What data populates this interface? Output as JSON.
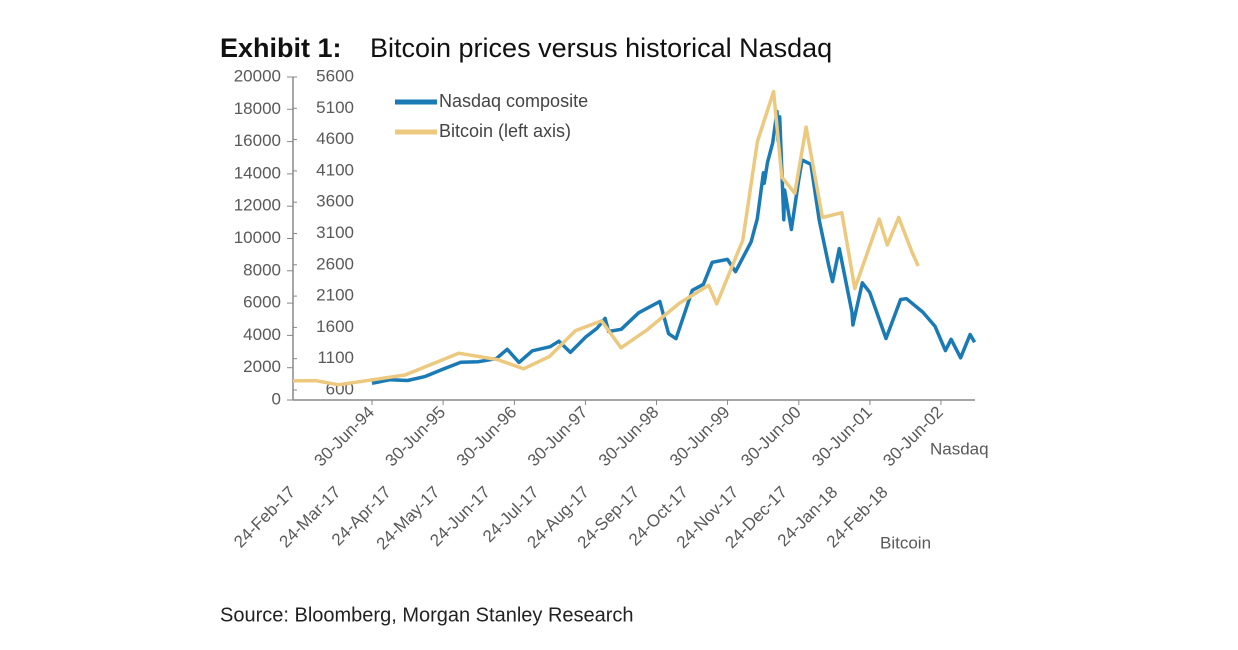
{
  "chart_data": {
    "type": "line",
    "title": "Exhibit 1:",
    "subtitle": "Bitcoin prices versus historical Nasdaq",
    "source": "Source: Bloomberg, Morgan Stanley Research",
    "legend": "upper left",
    "ylim": [
      0,
      20000
    ],
    "yticks": [
      0,
      2000,
      4000,
      6000,
      8000,
      10000,
      12000,
      14000,
      16000,
      18000,
      20000
    ],
    "y2lim": [
      440,
      5600
    ],
    "y2ticks": [
      600,
      1100,
      1600,
      2100,
      2600,
      3100,
      3600,
      4100,
      4600,
      5100,
      5600
    ],
    "xaxes": [
      {
        "label": "Nasdaq",
        "xlim": [
          "1993-05-20",
          "2002-12-22"
        ],
        "xticks": [
          {
            "value": "1994-06-30",
            "label": "30-Jun-94"
          },
          {
            "value": "1995-06-30",
            "label": "30-Jun-95"
          },
          {
            "value": "1996-06-30",
            "label": "30-Jun-96"
          },
          {
            "value": "1997-06-30",
            "label": "30-Jun-97"
          },
          {
            "value": "1998-06-30",
            "label": "30-Jun-98"
          },
          {
            "value": "1999-06-30",
            "label": "30-Jun-99"
          },
          {
            "value": "2000-06-30",
            "label": "30-Jun-00"
          },
          {
            "value": "2001-06-30",
            "label": "30-Jun-01"
          },
          {
            "value": "2002-06-30",
            "label": "30-Jun-02"
          }
        ]
      },
      {
        "label": "Bitcoin",
        "xlim": [
          "2017-02-24",
          "2018-04-20"
        ],
        "xticks": [
          {
            "value": "2017-02-24",
            "label": "24-Feb-17"
          },
          {
            "value": "2017-03-24",
            "label": "24-Mar-17"
          },
          {
            "value": "2017-04-24",
            "label": "24-Apr-17"
          },
          {
            "value": "2017-05-24",
            "label": "24-May-17"
          },
          {
            "value": "2017-06-24",
            "label": "24-Jun-17"
          },
          {
            "value": "2017-07-24",
            "label": "24-Jul-17"
          },
          {
            "value": "2017-08-24",
            "label": "24-Aug-17"
          },
          {
            "value": "2017-09-24",
            "label": "24-Sep-17"
          },
          {
            "value": "2017-10-24",
            "label": "24-Oct-17"
          },
          {
            "value": "2017-11-24",
            "label": "24-Nov-17"
          },
          {
            "value": "2017-12-24",
            "label": "24-Dec-17"
          },
          {
            "value": "2018-01-24",
            "label": "24-Jan-18"
          },
          {
            "value": "2018-02-24",
            "label": "24-Feb-18"
          }
        ]
      }
    ],
    "series": [
      {
        "name": "Nasdaq composite",
        "color": "#1a7ab5",
        "axis": "y2",
        "xaxis": 0,
        "x": [
          "1994-06-30",
          "1994-09-30",
          "1994-12-30",
          "1995-03-31",
          "1995-06-30",
          "1995-09-29",
          "1995-12-29",
          "1996-03-29",
          "1996-05-24",
          "1996-07-24",
          "1996-09-30",
          "1996-12-31",
          "1997-02-14",
          "1997-04-14",
          "1997-06-30",
          "1997-08-29",
          "1997-10-09",
          "1997-10-27",
          "1997-12-31",
          "1998-03-31",
          "1998-07-17",
          "1998-08-31",
          "1998-10-08",
          "1998-12-31",
          "1999-02-26",
          "1999-04-12",
          "1999-06-30",
          "1999-08-10",
          "1999-10-29",
          "1999-11-30",
          "1999-12-31",
          "2000-01-04",
          "2000-01-21",
          "2000-02-17",
          "2000-03-10",
          "2000-03-15",
          "2000-03-24",
          "2000-04-14",
          "2000-04-18",
          "2000-05-23",
          "2000-06-30",
          "2000-07-17",
          "2000-08-31",
          "2000-10-13",
          "2000-11-30",
          "2000-12-20",
          "2001-01-24",
          "2001-03-30",
          "2001-04-04",
          "2001-05-22",
          "2001-06-29",
          "2001-09-21",
          "2001-12-05",
          "2002-01-04",
          "2002-03-29",
          "2002-05-31",
          "2002-07-23",
          "2002-08-21",
          "2002-10-09",
          "2002-11-27",
          "2002-12-20"
        ],
        "values": [
          706,
          764,
          752,
          817,
          933,
          1044,
          1052,
          1101,
          1250,
          1040,
          1226,
          1291,
          1380,
          1201,
          1442,
          1587,
          1745,
          1535,
          1570,
          1835,
          2014,
          1499,
          1419,
          2193,
          2288,
          2640,
          2686,
          2490,
          2966,
          3336,
          4069,
          3901,
          4235,
          4549,
          5048,
          4583,
          4963,
          3321,
          3794,
          3164,
          3966,
          4274,
          4206,
          3316,
          2598,
          2332,
          2859,
          1840,
          1638,
          2313,
          2161,
          1423,
          2046,
          2059,
          1845,
          1615,
          1229,
          1409,
          1114,
          1487,
          1363
        ]
      },
      {
        "name": "Bitcoin (left axis)",
        "color": "#ecc97e",
        "axis": "y",
        "xaxis": 1,
        "x": [
          "2017-02-24",
          "2017-03-10",
          "2017-03-24",
          "2017-05-04",
          "2017-05-25",
          "2017-06-06",
          "2017-06-30",
          "2017-07-16",
          "2017-08-01",
          "2017-08-17",
          "2017-09-02",
          "2017-09-14",
          "2017-09-30",
          "2017-10-20",
          "2017-11-07",
          "2017-11-12",
          "2017-11-28",
          "2017-12-07",
          "2017-12-17",
          "2017-12-22",
          "2017-12-30",
          "2018-01-06",
          "2018-01-16",
          "2018-01-28",
          "2018-02-05",
          "2018-02-20",
          "2018-02-25",
          "2018-03-04",
          "2018-03-12",
          "2018-03-16"
        ],
        "values": [
          1180,
          1200,
          940,
          1550,
          2400,
          2900,
          2500,
          1930,
          2700,
          4300,
          4900,
          3230,
          4340,
          6000,
          7100,
          5950,
          9900,
          16000,
          19100,
          13800,
          12800,
          16900,
          11300,
          11600,
          6900,
          11200,
          9600,
          11300,
          9200,
          8300
        ]
      }
    ]
  }
}
